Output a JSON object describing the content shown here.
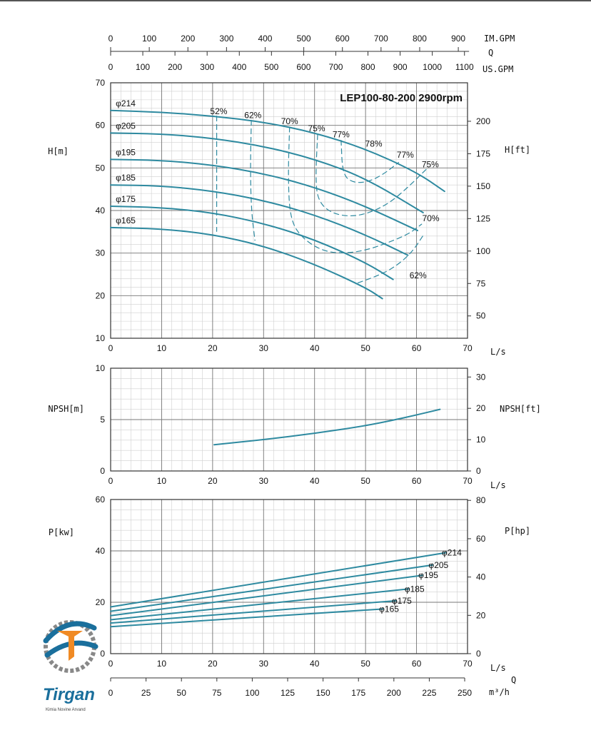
{
  "colors": {
    "curve": "#2e8aa0",
    "grid_major": "#777777",
    "grid_minor": "#cfcfcf"
  },
  "logo": {
    "name": "Tirgan",
    "sub": "Kimia Novine Arvand",
    "icon": "tirgan-logo-icon"
  },
  "chart_data": [
    {
      "type": "line",
      "title": "LEP100-80-200 2900rpm",
      "xlabel": "L/s",
      "ylabel": "H[m]",
      "ylabel_right": "H[ft]",
      "xlim": [
        0,
        70
      ],
      "ylim": [
        10,
        70
      ],
      "x_ticks": [
        0,
        10,
        20,
        30,
        40,
        50,
        60,
        70
      ],
      "y_ticks": [
        10,
        20,
        30,
        40,
        50,
        60,
        70
      ],
      "y_ticks_right": [
        {
          "value": 50,
          "m": 15.24
        },
        {
          "value": 75,
          "m": 22.86
        },
        {
          "value": 100,
          "m": 30.48
        },
        {
          "value": 125,
          "m": 38.1
        },
        {
          "value": 150,
          "m": 45.72
        },
        {
          "value": 175,
          "m": 53.34
        },
        {
          "value": 200,
          "m": 60.96
        }
      ],
      "top_axes": [
        {
          "label": "IM.GPM",
          "per_ls": 13.198,
          "ticks": [
            0,
            100,
            200,
            300,
            400,
            500,
            600,
            700,
            800,
            900
          ]
        },
        {
          "label": "Q",
          "per_ls": 0,
          "ticks": []
        },
        {
          "label": "US.GPM",
          "per_ls": 15.85,
          "ticks": [
            0,
            100,
            200,
            300,
            400,
            500,
            600,
            700,
            800,
            900,
            1000,
            1100
          ]
        }
      ],
      "series": [
        {
          "name": "φ214",
          "x": [
            0,
            10,
            20,
            30,
            40,
            50,
            60,
            65.5
          ],
          "y": [
            63.5,
            63.1,
            62.2,
            60.8,
            58.3,
            54.5,
            49,
            44.5
          ]
        },
        {
          "name": "φ205",
          "x": [
            0,
            10,
            20,
            30,
            40,
            50,
            61.3
          ],
          "y": [
            58.2,
            58,
            57,
            55.1,
            52.1,
            47.6,
            39.5
          ]
        },
        {
          "name": "φ195",
          "x": [
            0,
            10,
            20,
            30,
            40,
            50,
            60.2
          ],
          "y": [
            52,
            51.8,
            50.7,
            48.7,
            45.5,
            41,
            35.3
          ]
        },
        {
          "name": "φ185",
          "x": [
            0,
            10,
            20,
            30,
            40,
            50,
            58.3
          ],
          "y": [
            46,
            45.8,
            44.6,
            42.4,
            39,
            34.3,
            29.5
          ]
        },
        {
          "name": "φ175",
          "x": [
            0,
            10,
            20,
            30,
            40,
            50,
            55.4
          ],
          "y": [
            41,
            40.7,
            39.5,
            37,
            33.2,
            27.8,
            23.8
          ]
        },
        {
          "name": "φ165",
          "x": [
            0,
            10,
            20,
            30,
            40,
            50,
            53.3
          ],
          "y": [
            36,
            35.7,
            34.4,
            31.7,
            27.4,
            21.9,
            19.3
          ]
        }
      ],
      "efficiency_labels": [
        {
          "text": "52%",
          "x": 21.2,
          "y": 62.6
        },
        {
          "text": "62%",
          "x": 27.9,
          "y": 61.7
        },
        {
          "text": "70%",
          "x": 35.1,
          "y": 60.3
        },
        {
          "text": "75%",
          "x": 40.4,
          "y": 58.6
        },
        {
          "text": "77%",
          "x": 45.2,
          "y": 57.2
        },
        {
          "text": "78%",
          "x": 51.6,
          "y": 55
        },
        {
          "text": "77%",
          "x": 57.8,
          "y": 52.4
        },
        {
          "text": "75%",
          "x": 62.7,
          "y": 50.1
        },
        {
          "text": "70%",
          "x": 62.8,
          "y": 37.5
        },
        {
          "text": "62%",
          "x": 60.3,
          "y": 24.1
        }
      ],
      "efficiency_contours": [
        {
          "name": "52%",
          "x": [
            20.8,
            20.8,
            20.8
          ],
          "y": [
            62.2,
            50,
            35.1
          ]
        },
        {
          "name": "62%",
          "x": [
            27.6,
            27.4,
            27.6,
            28.3
          ],
          "y": [
            61.2,
            50,
            40,
            33
          ]
        },
        {
          "name": "70%",
          "x": [
            35.1,
            34.8,
            35.2,
            37.5,
            42,
            47,
            51,
            54.5,
            58.5,
            61
          ],
          "y": [
            59.6,
            48,
            38,
            33.5,
            30.2,
            30,
            31,
            32.5,
            34.5,
            36.8
          ]
        },
        {
          "name": "75%",
          "x": [
            40.6,
            40.2,
            40.6,
            43,
            47,
            51,
            55,
            58.8,
            62
          ],
          "y": [
            57.8,
            48,
            42.5,
            39.5,
            38.5,
            39.5,
            42,
            46,
            49.8
          ]
        },
        {
          "name": "77%",
          "x": [
            45.2,
            45.5,
            47.5,
            50.5,
            53.5,
            56.5
          ],
          "y": [
            56.5,
            48.5,
            46.5,
            46.7,
            48.5,
            51.3
          ]
        },
        {
          "name": "62%",
          "x": [
            48.5,
            52,
            55.5,
            59,
            61.5
          ],
          "y": [
            23,
            24.5,
            26.5,
            30,
            34.5
          ]
        }
      ]
    },
    {
      "type": "line",
      "xlabel": "L/s",
      "ylabel": "NPSH[m]",
      "ylabel_right": "NPSH[ft]",
      "xlim": [
        0,
        70
      ],
      "ylim": [
        0,
        10
      ],
      "x_ticks": [
        0,
        10,
        20,
        30,
        40,
        50,
        60,
        70
      ],
      "y_ticks": [
        0,
        5,
        10
      ],
      "y_ticks_right": [
        {
          "value": 0,
          "m": 0
        },
        {
          "value": 10,
          "m": 3.048
        },
        {
          "value": 20,
          "m": 6.096
        },
        {
          "value": 30,
          "m": 9.144
        }
      ],
      "series": [
        {
          "name": "NPSH",
          "x": [
            20.3,
            30,
            40,
            50,
            55,
            60,
            64.6
          ],
          "y": [
            2.55,
            3.05,
            3.65,
            4.4,
            4.9,
            5.45,
            6
          ]
        }
      ]
    },
    {
      "type": "line",
      "xlabel": "L/s",
      "ylabel": "P[kw]",
      "ylabel_right": "P[hp]",
      "xlim": [
        0,
        70
      ],
      "ylim": [
        0,
        60
      ],
      "x_ticks": [
        0,
        10,
        20,
        30,
        40,
        50,
        60,
        70
      ],
      "y_ticks": [
        0,
        20,
        40,
        60
      ],
      "y_ticks_right": [
        {
          "value": 0,
          "kw": 0
        },
        {
          "value": 20,
          "kw": 14.91
        },
        {
          "value": 40,
          "kw": 29.83
        },
        {
          "value": 60,
          "kw": 44.74
        },
        {
          "value": 80,
          "kw": 59.66
        }
      ],
      "bottom_axes": [
        {
          "label": "Q",
          "per_ls": 0,
          "ticks": []
        },
        {
          "label": "m³/h",
          "per_ls": 3.6,
          "ticks": [
            0,
            25,
            50,
            75,
            100,
            125,
            150,
            175,
            200,
            225,
            250
          ]
        }
      ],
      "series": [
        {
          "name": "φ214",
          "x": [
            0,
            65.8
          ],
          "y": [
            18.2,
            39.3
          ]
        },
        {
          "name": "φ205",
          "x": [
            0,
            63.2
          ],
          "y": [
            16.5,
            34.5
          ]
        },
        {
          "name": "φ195",
          "x": [
            0,
            61.2
          ],
          "y": [
            14.8,
            30.5
          ]
        },
        {
          "name": "φ185",
          "x": [
            0,
            58.5
          ],
          "y": [
            13.2,
            25.2
          ]
        },
        {
          "name": "φ175",
          "x": [
            0,
            56
          ],
          "y": [
            11.9,
            20.6
          ]
        },
        {
          "name": "φ165",
          "x": [
            0,
            53.5
          ],
          "y": [
            10.5,
            17.4
          ]
        }
      ]
    }
  ]
}
